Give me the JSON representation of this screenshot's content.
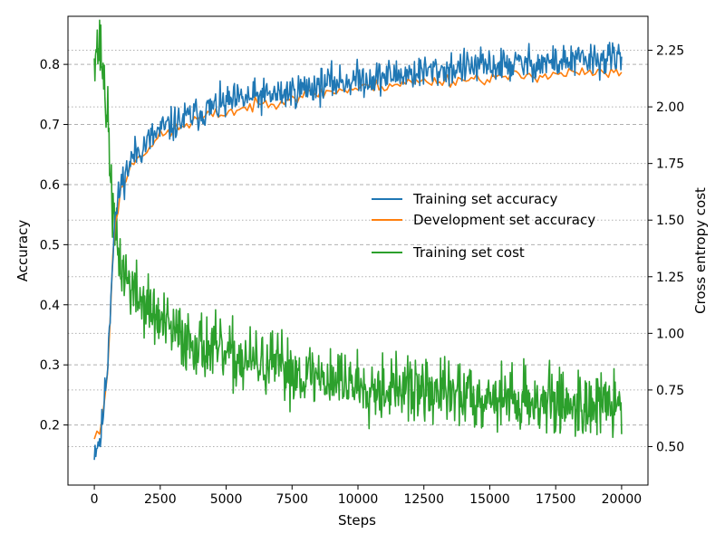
{
  "chart_data": {
    "type": "line",
    "xlabel": "Steps",
    "ylabel_left": "Accuracy",
    "ylabel_right": "Cross entropy cost",
    "xlim": [
      -1000,
      21000
    ],
    "ylim_left": [
      0.1,
      0.88
    ],
    "ylim_right": [
      0.33,
      2.4
    ],
    "xticks": [
      0,
      2500,
      5000,
      7500,
      10000,
      12500,
      15000,
      17500,
      20000
    ],
    "yticks_left": [
      0.2,
      0.3,
      0.4,
      0.5,
      0.6,
      0.7,
      0.8
    ],
    "yticks_left_labels": [
      "0.2",
      "0.3",
      "0.4",
      "0.5",
      "0.6",
      "0.7",
      "0.8"
    ],
    "yticks_right": [
      0.5,
      0.75,
      1.0,
      1.25,
      1.5,
      1.75,
      2.0,
      2.25
    ],
    "yticks_right_labels": [
      "0.50",
      "0.75",
      "1.00",
      "1.25",
      "1.50",
      "1.75",
      "2.00",
      "2.25"
    ],
    "grid": {
      "left": "dashed",
      "right": "dotted"
    },
    "legend_position": "center-right",
    "series": [
      {
        "name": "Training set accuracy",
        "axis": "left",
        "color": "#1f77b4",
        "x": [
          0,
          250,
          500,
          750,
          1000,
          1500,
          2000,
          2500,
          3000,
          4000,
          5000,
          6000,
          7000,
          8000,
          9000,
          10000,
          12000,
          14000,
          16000,
          18000,
          20000
        ],
        "values": [
          0.16,
          0.18,
          0.3,
          0.53,
          0.6,
          0.65,
          0.67,
          0.69,
          0.7,
          0.72,
          0.735,
          0.745,
          0.75,
          0.76,
          0.77,
          0.775,
          0.785,
          0.795,
          0.8,
          0.805,
          0.81
        ]
      },
      {
        "name": "Development set accuracy",
        "axis": "left",
        "color": "#ff7f0e",
        "x": [
          0,
          250,
          500,
          750,
          1000,
          1500,
          2000,
          2500,
          3000,
          4000,
          5000,
          6000,
          7000,
          8000,
          9000,
          10000,
          12000,
          14000,
          16000,
          18000,
          20000
        ],
        "values": [
          0.18,
          0.19,
          0.29,
          0.52,
          0.59,
          0.64,
          0.66,
          0.68,
          0.69,
          0.71,
          0.72,
          0.73,
          0.74,
          0.75,
          0.755,
          0.76,
          0.77,
          0.775,
          0.78,
          0.785,
          0.785
        ]
      },
      {
        "name": "Training set cost",
        "axis": "right",
        "color": "#2ca02c",
        "x": [
          0,
          250,
          500,
          750,
          1000,
          1500,
          2000,
          2500,
          3000,
          4000,
          5000,
          6000,
          7000,
          8000,
          9000,
          10000,
          12000,
          14000,
          16000,
          18000,
          20000
        ],
        "values": [
          2.28,
          2.25,
          1.95,
          1.45,
          1.3,
          1.18,
          1.12,
          1.05,
          1.0,
          0.95,
          0.9,
          0.87,
          0.85,
          0.82,
          0.8,
          0.78,
          0.75,
          0.73,
          0.71,
          0.69,
          0.68
        ]
      }
    ]
  }
}
